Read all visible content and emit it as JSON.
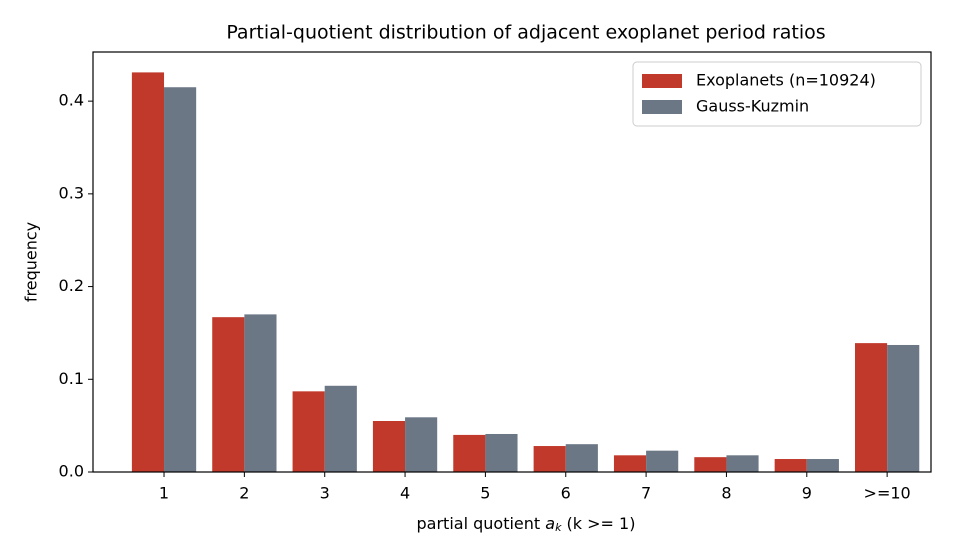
{
  "chart_data": {
    "type": "bar",
    "title": "Partial-quotient distribution of adjacent exoplanet period ratios",
    "xlabel": {
      "prefix": "partial quotient",
      "symbol": "a",
      "subscript": "k",
      "suffix": "(k >= 1)"
    },
    "ylabel": "frequency",
    "categories": [
      "1",
      "2",
      "3",
      "4",
      "5",
      "6",
      "7",
      "8",
      "9",
      ">=10"
    ],
    "series": [
      {
        "name": "Exoplanets (n=10924)",
        "color": "#c0392b",
        "values": [
          0.431,
          0.167,
          0.087,
          0.055,
          0.04,
          0.028,
          0.018,
          0.016,
          0.014,
          0.139
        ]
      },
      {
        "name": "Gauss-Kuzmin",
        "color": "#6b7785",
        "values": [
          0.415,
          0.17,
          0.093,
          0.059,
          0.041,
          0.03,
          0.023,
          0.018,
          0.014,
          0.137
        ]
      }
    ],
    "ylim": [
      0,
      0.453
    ],
    "yticks": [
      {
        "value": 0,
        "label": "0.0"
      },
      0.1,
      0.2,
      0.3,
      0.4
    ],
    "legend": "upper right"
  }
}
